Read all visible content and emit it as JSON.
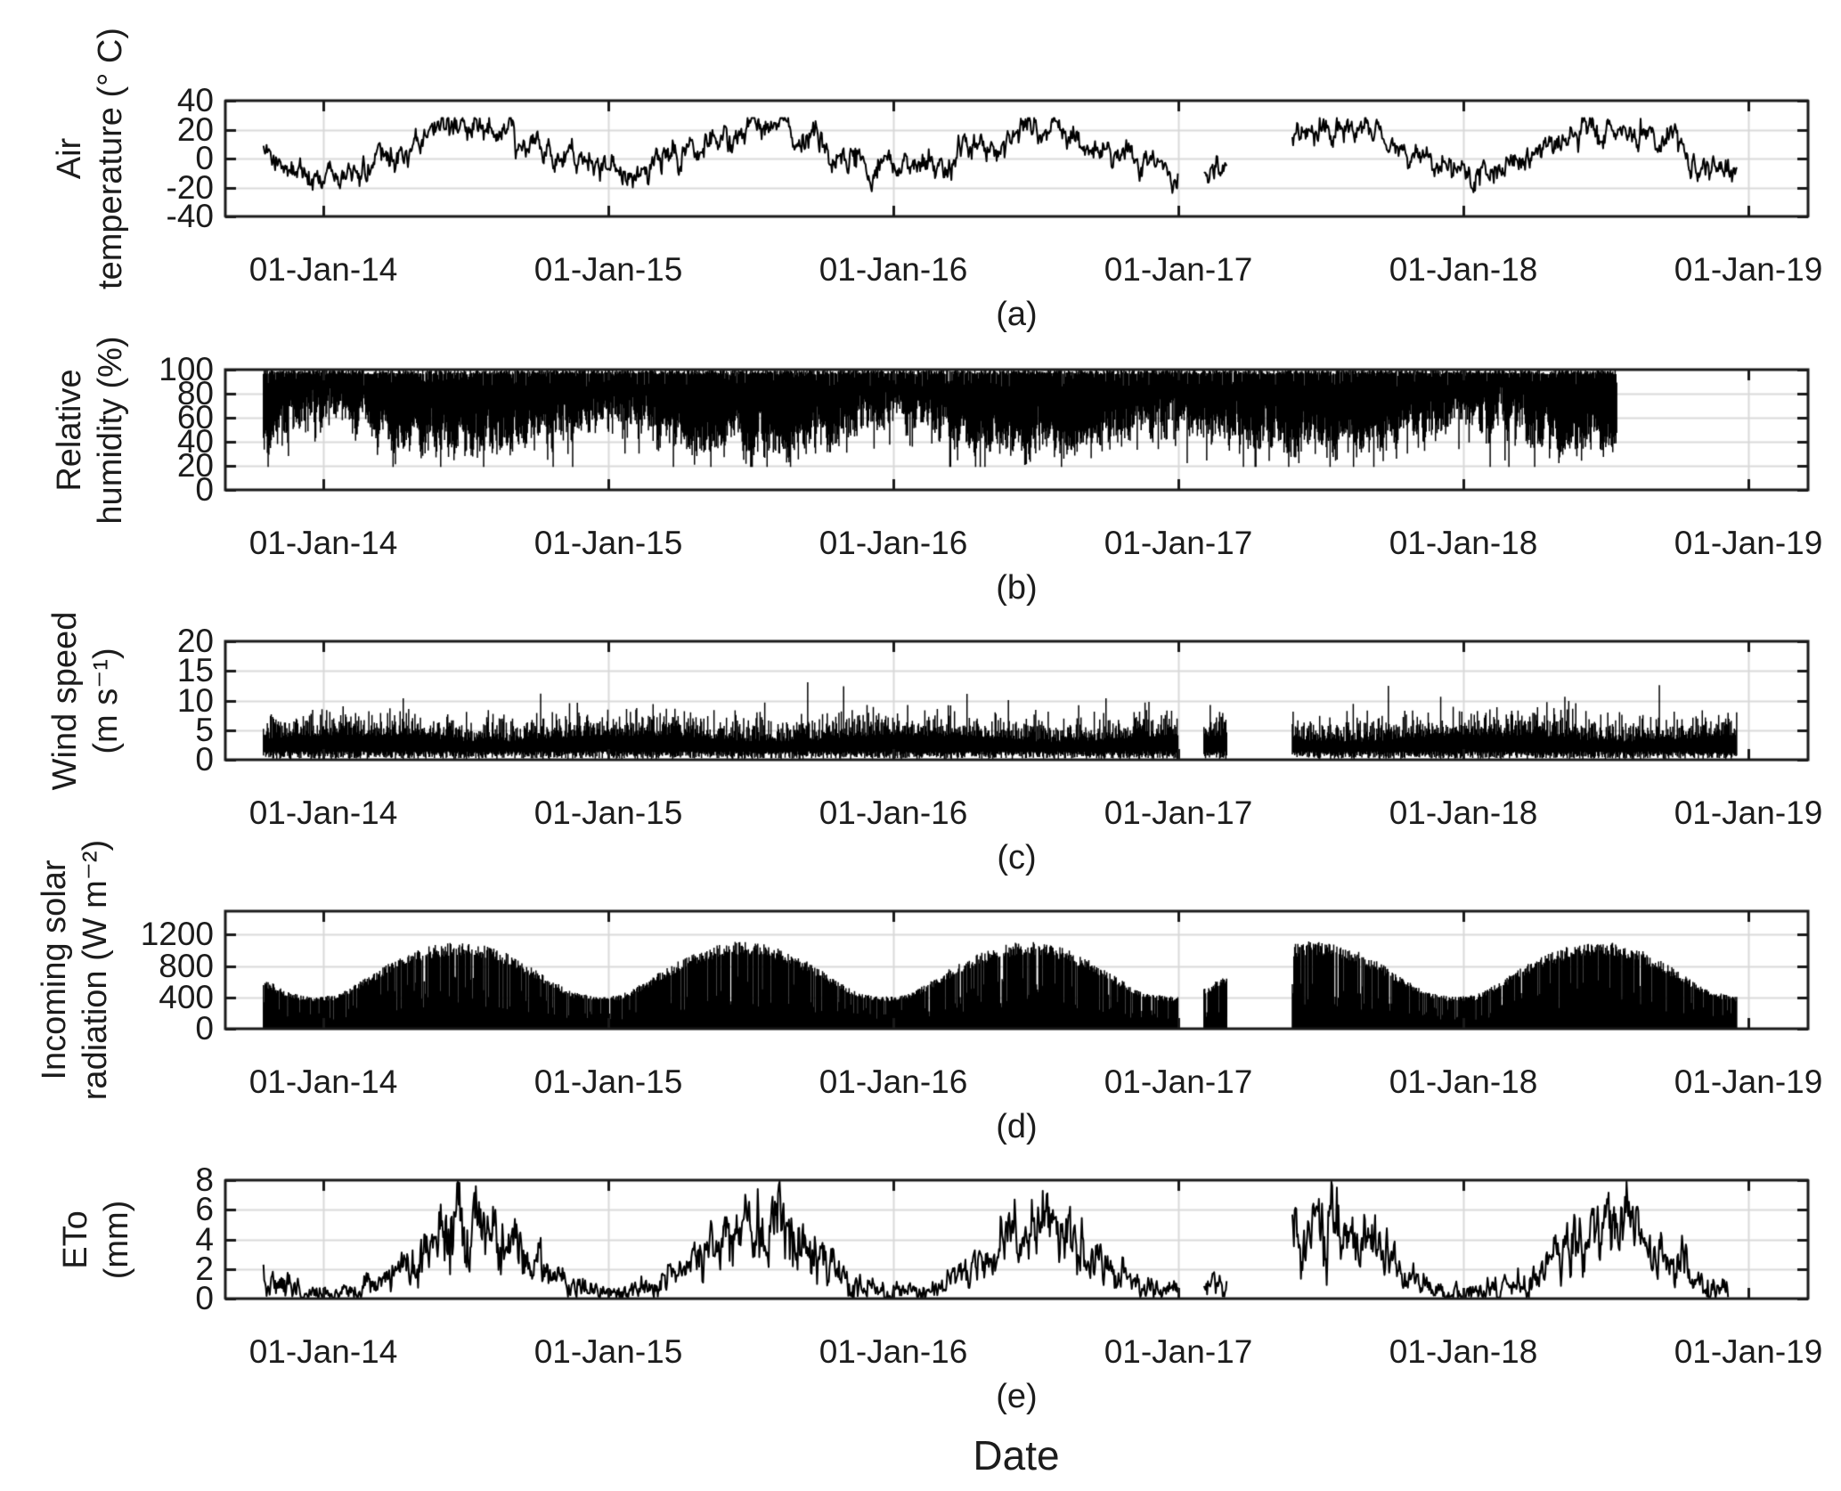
{
  "figure": {
    "xlabel": "Date",
    "x_tick_labels": [
      "01-Jan-14",
      "01-Jan-15",
      "01-Jan-16",
      "01-Jan-17",
      "01-Jan-18",
      "01-Jan-19"
    ],
    "panels": [
      {
        "id": "a",
        "sublabel": "(a)",
        "ylabel_line1": "Air",
        "ylabel_line2": "temperature (° C)",
        "ytick_labels": [
          "40",
          "20",
          "0",
          "-20",
          "-40"
        ]
      },
      {
        "id": "b",
        "sublabel": "(b)",
        "ylabel_line1": "Relative",
        "ylabel_line2": "humidity (%)",
        "ytick_labels": [
          "100",
          "80",
          "60",
          "40",
          "20",
          "0"
        ]
      },
      {
        "id": "c",
        "sublabel": "(c)",
        "ylabel_line1": "Wind speed",
        "ylabel_line2": "(m s⁻¹)",
        "ytick_labels": [
          "20",
          "15",
          "10",
          "5",
          "0"
        ]
      },
      {
        "id": "d",
        "sublabel": "(d)",
        "ylabel_line1": "Incoming solar",
        "ylabel_line2": "radiation (W m⁻²)",
        "ytick_labels": [
          "1200",
          "800",
          "400",
          "0"
        ]
      },
      {
        "id": "e",
        "sublabel": "(e)",
        "ylabel_line1": "ETo",
        "ylabel_line2": "(mm)",
        "ytick_labels": [
          "8",
          "6",
          "4",
          "2",
          "0"
        ]
      }
    ],
    "colors": {
      "data": "#000000",
      "axis": "#1a1a1a",
      "grid": "#d9d9d9",
      "background": "#ffffff"
    }
  },
  "chart_data": [
    {
      "panel": "a",
      "type": "line",
      "ylabel": "Air temperature (° C)",
      "ylim": [
        -40,
        40
      ],
      "yticks": [
        -40,
        -20,
        0,
        20,
        40
      ],
      "x_range_years": [
        2013.656,
        2019.209
      ],
      "x_tick_labels": [
        "01-Jan-14",
        "01-Jan-15",
        "01-Jan-16",
        "01-Jan-17",
        "01-Jan-18",
        "01-Jan-19"
      ],
      "grid": true,
      "legend": "none",
      "data_segments_years": [
        [
          2013.79,
          2017.0
        ],
        [
          2017.09,
          2017.17
        ],
        [
          2017.4,
          2018.96
        ]
      ],
      "monthly_mean": [
        -9,
        -7,
        -1,
        6,
        13,
        18,
        20,
        19,
        13,
        6,
        -3,
        -8
      ],
      "daily_noise_std": 6,
      "observed_range": [
        -28,
        28
      ],
      "seed": 11
    },
    {
      "panel": "b",
      "type": "band",
      "ylabel": "Relative humidity (%)",
      "ylim": [
        0,
        100
      ],
      "yticks": [
        0,
        20,
        40,
        60,
        80,
        100
      ],
      "x_range_years": [
        2013.656,
        2019.209
      ],
      "x_tick_labels": [
        "01-Jan-14",
        "01-Jan-15",
        "01-Jan-16",
        "01-Jan-17",
        "01-Jan-18",
        "01-Jan-19"
      ],
      "grid": true,
      "legend": "none",
      "data_segments_years": [
        [
          2013.79,
          2018.54
        ]
      ],
      "monthly_low_envelope": [
        62,
        58,
        50,
        44,
        42,
        41,
        42,
        41,
        45,
        50,
        57,
        62
      ],
      "high_envelope": 100,
      "observed_min": 20,
      "seed": 22
    },
    {
      "panel": "c",
      "type": "band",
      "ylabel": "Wind speed (m s⁻¹)",
      "ylim": [
        0,
        20
      ],
      "yticks": [
        0,
        5,
        10,
        15,
        20
      ],
      "x_range_years": [
        2013.656,
        2019.209
      ],
      "x_tick_labels": [
        "01-Jan-14",
        "01-Jan-15",
        "01-Jan-16",
        "01-Jan-17",
        "01-Jan-18",
        "01-Jan-19"
      ],
      "grid": true,
      "legend": "none",
      "data_segments_years": [
        [
          2013.79,
          2017.0
        ],
        [
          2017.09,
          2017.17
        ],
        [
          2017.4,
          2018.96
        ]
      ],
      "monthly_mean": [
        4,
        4,
        4,
        3.8,
        3.5,
        3.2,
        3,
        3,
        3.2,
        3.5,
        3.8,
        4
      ],
      "typical_max": 10,
      "gust_max": 14,
      "seed": 33
    },
    {
      "panel": "d",
      "type": "area",
      "ylabel": "Incoming solar radiation (W m⁻²)",
      "ylim": [
        0,
        1500
      ],
      "yticks": [
        0,
        400,
        800,
        1200
      ],
      "x_range_years": [
        2013.656,
        2019.209
      ],
      "x_tick_labels": [
        "01-Jan-14",
        "01-Jan-15",
        "01-Jan-16",
        "01-Jan-17",
        "01-Jan-18",
        "01-Jan-19"
      ],
      "grid": true,
      "legend": "none",
      "data_segments_years": [
        [
          2013.79,
          2017.0
        ],
        [
          2017.09,
          2017.17
        ],
        [
          2017.4,
          2018.96
        ]
      ],
      "monthly_peak": [
        430,
        590,
        790,
        950,
        1060,
        1120,
        1090,
        1000,
        840,
        640,
        470,
        410
      ],
      "seed": 44
    },
    {
      "panel": "e",
      "type": "line",
      "ylabel": "ETo (mm)",
      "ylim": [
        0,
        8
      ],
      "yticks": [
        0,
        2,
        4,
        6,
        8
      ],
      "x_range_years": [
        2013.656,
        2019.209
      ],
      "x_tick_labels": [
        "01-Jan-14",
        "01-Jan-15",
        "01-Jan-16",
        "01-Jan-17",
        "01-Jan-18",
        "01-Jan-19"
      ],
      "grid": true,
      "legend": "none",
      "data_segments_years": [
        [
          2013.79,
          2017.0
        ],
        [
          2017.09,
          2017.17
        ],
        [
          2017.4,
          2018.93
        ]
      ],
      "monthly_mean": [
        0.4,
        0.6,
        1.2,
        2.2,
        3.5,
        4.5,
        5,
        4.6,
        3,
        1.7,
        0.8,
        0.4
      ],
      "observed_max": 7.7,
      "spike_year": 2017.41,
      "seed": 55
    }
  ]
}
